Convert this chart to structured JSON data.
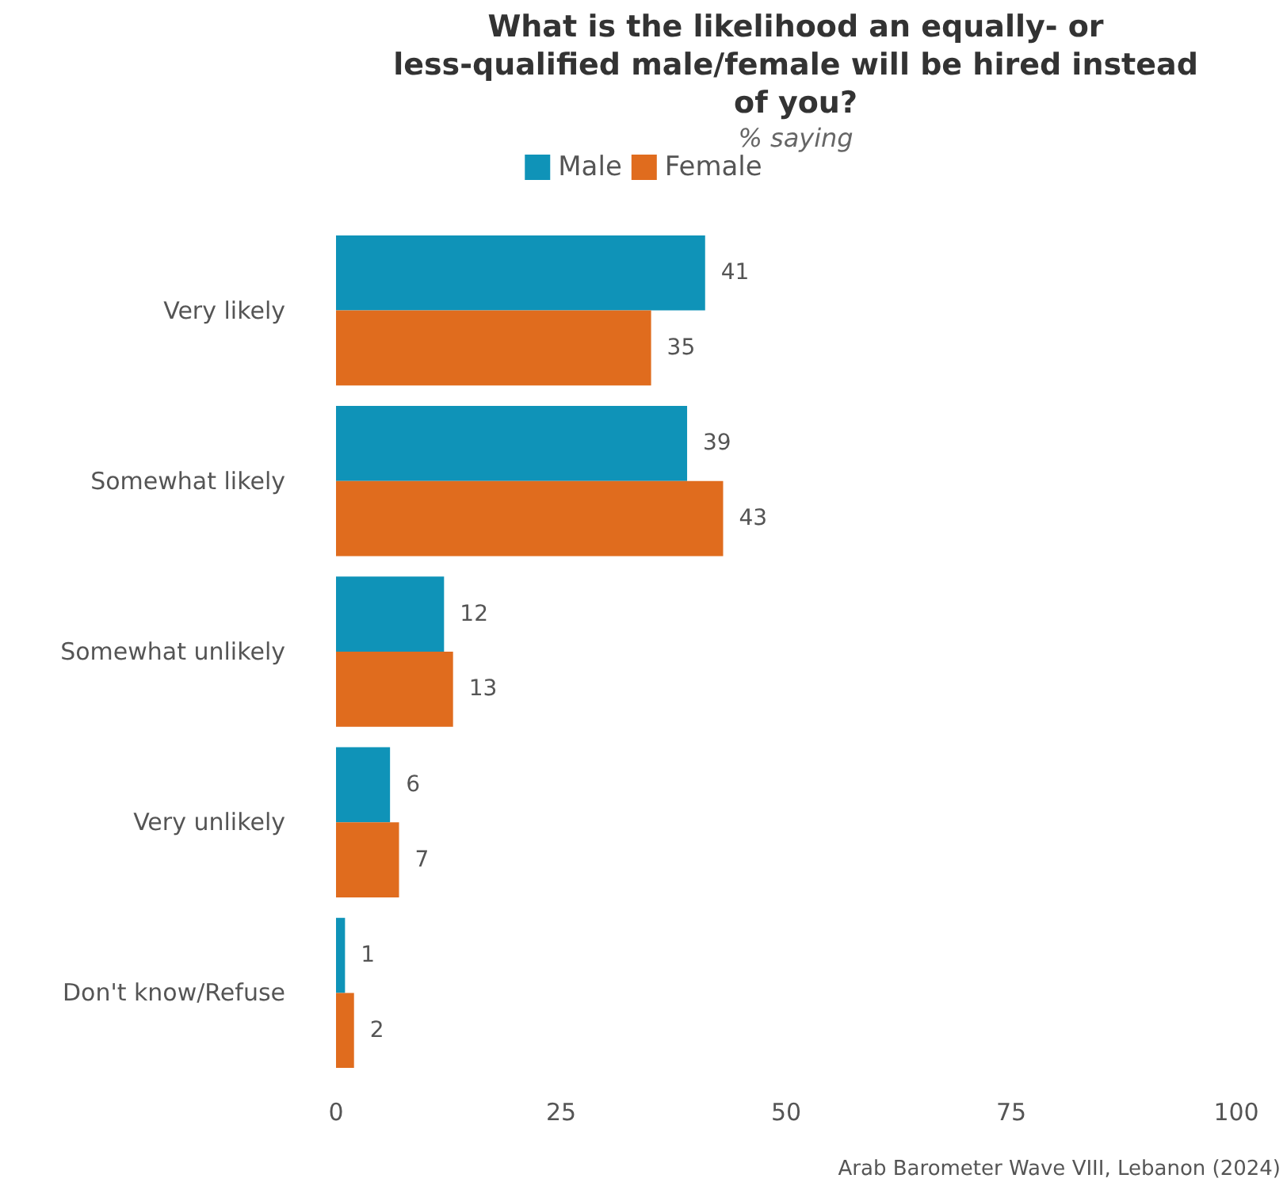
{
  "chart_data": {
    "type": "bar",
    "orientation": "horizontal",
    "title": "What is the likelihood an equally- or\nless-qualified male/female will be hired instead\nof you?",
    "subtitle": "% saying",
    "categories": [
      "Very likely",
      "Somewhat likely",
      "Somewhat unlikely",
      "Very unlikely",
      "Don't know/Refuse"
    ],
    "series": [
      {
        "name": "Male",
        "color": "#0f93b8",
        "values": [
          41,
          39,
          12,
          6,
          1
        ]
      },
      {
        "name": "Female",
        "color": "#e06c1e",
        "values": [
          35,
          43,
          13,
          7,
          2
        ]
      }
    ],
    "xlim": [
      0,
      100
    ],
    "xticks": [
      0,
      25,
      50,
      75,
      100
    ],
    "data_labels": true,
    "grid": false,
    "legend": "top",
    "annotations": [
      "Arab Barometer Wave VIII, Lebanon (2024)"
    ]
  }
}
